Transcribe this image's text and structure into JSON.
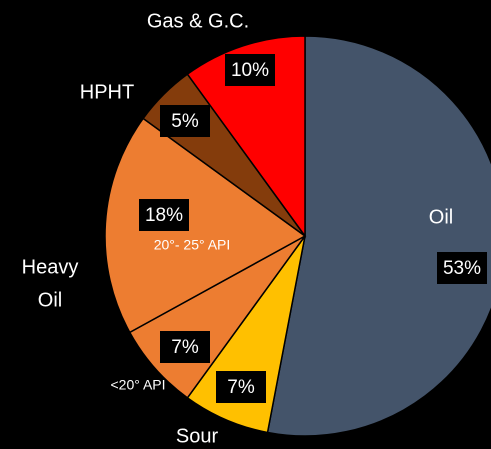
{
  "chart_data": {
    "type": "pie",
    "categories": [
      "Oil",
      "Sour",
      "<20° API",
      "20°- 25° API",
      "HPHT",
      "Gas & G.C."
    ],
    "values": [
      53,
      7,
      7,
      18,
      5,
      10
    ],
    "value_labels": [
      "53%",
      "7%",
      "7%",
      "18%",
      "5%",
      "10%"
    ],
    "colors": [
      "#44546a",
      "#ffc000",
      "#ed7d31",
      "#ed7d31",
      "#843c0c",
      "#ff0000"
    ],
    "annotation": [
      "Heavy",
      "Oil"
    ]
  }
}
